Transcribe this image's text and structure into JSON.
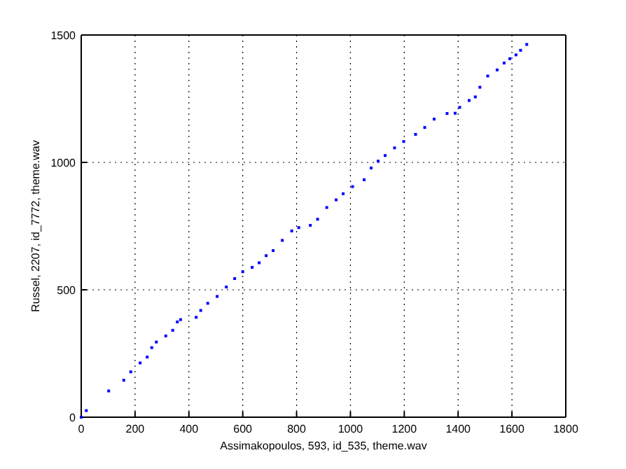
{
  "chart_data": {
    "type": "scatter",
    "xlabel": "Assimakopoulos, 593, id_535, theme.wav",
    "ylabel": "Russel, 2207, id_7772, theme.wav",
    "xlim": [
      0,
      1800
    ],
    "xticks": [
      0,
      200,
      400,
      600,
      800,
      1000,
      1200,
      1400,
      1600,
      1800
    ],
    "ylim": [
      0,
      1500
    ],
    "yticks": [
      0,
      500,
      1000,
      1500
    ],
    "grid": true,
    "marker": "square",
    "series": [
      {
        "color": "#0000ff",
        "x": [
          0,
          19,
          102,
          158,
          184,
          219,
          245,
          262,
          279,
          314,
          340,
          357,
          369,
          427,
          444,
          470,
          505,
          539,
          570,
          600,
          635,
          661,
          687,
          713,
          747,
          782,
          808,
          851,
          878,
          912,
          947,
          973,
          1008,
          1051,
          1077,
          1103,
          1129,
          1164,
          1198,
          1242,
          1276,
          1311,
          1359,
          1389,
          1406,
          1441,
          1464,
          1481,
          1510,
          1545,
          1571,
          1592,
          1615,
          1632,
          1655
        ],
        "values": [
          0,
          26,
          103,
          145,
          178,
          213,
          236,
          273,
          295,
          319,
          341,
          374,
          383,
          392,
          419,
          447,
          474,
          511,
          544,
          571,
          588,
          606,
          634,
          654,
          694,
          731,
          744,
          753,
          777,
          823,
          853,
          877,
          905,
          932,
          978,
          1005,
          1027,
          1057,
          1082,
          1110,
          1137,
          1170,
          1192,
          1193,
          1216,
          1243,
          1257,
          1295,
          1339,
          1363,
          1390,
          1407,
          1422,
          1440,
          1463
        ]
      }
    ]
  }
}
